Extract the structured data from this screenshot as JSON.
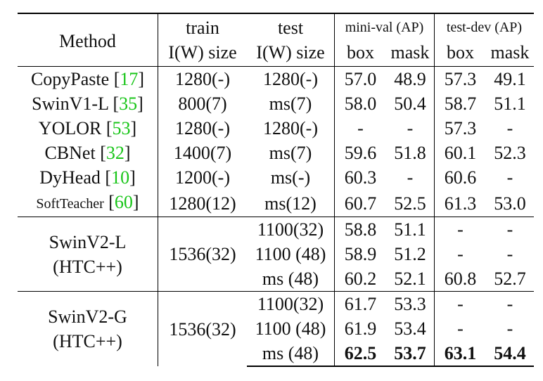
{
  "header": {
    "method": "Method",
    "train_top": "train",
    "test_top": "test",
    "train_bottom": "I(W) size",
    "test_bottom": "I(W) size",
    "group_minival": "mini-val (AP)",
    "group_testdev": "test-dev (AP)",
    "box": "box",
    "mask": "mask"
  },
  "rows": [
    {
      "name": "CopyPaste",
      "cite": "17",
      "train": "1280(-)",
      "test": "1280(-)",
      "mv_box": "57.0",
      "mv_mask": "48.9",
      "td_box": "57.3",
      "td_mask": "49.1"
    },
    {
      "name": "SwinV1-L",
      "cite": "35",
      "train": "800(7)",
      "test": "ms(7)",
      "mv_box": "58.0",
      "mv_mask": "50.4",
      "td_box": "58.7",
      "td_mask": "51.1"
    },
    {
      "name": "YOLOR",
      "cite": "53",
      "train": "1280(-)",
      "test": "1280(-)",
      "mv_box": "-",
      "mv_mask": "-",
      "td_box": "57.3",
      "td_mask": "-"
    },
    {
      "name": "CBNet",
      "cite": "32",
      "train": "1400(7)",
      "test": "ms(7)",
      "mv_box": "59.6",
      "mv_mask": "51.8",
      "td_box": "60.1",
      "td_mask": "52.3"
    },
    {
      "name": "DyHead",
      "cite": "10",
      "train": "1200(-)",
      "test": "ms(-)",
      "mv_box": "60.3",
      "mv_mask": "-",
      "td_box": "60.6",
      "td_mask": "-"
    },
    {
      "name": "SoftTeacher",
      "cite": "60",
      "train": "1280(12)",
      "test": "ms(12)",
      "mv_box": "60.7",
      "mv_mask": "52.5",
      "td_box": "61.3",
      "td_mask": "53.0"
    }
  ],
  "group1": {
    "name_line1": "SwinV2-L",
    "name_line2": "(HTC++)",
    "train": "1536(32)",
    "rows": [
      {
        "test": "1100(32)",
        "mv_box": "58.8",
        "mv_mask": "51.1",
        "td_box": "-",
        "td_mask": "-"
      },
      {
        "test": "1100 (48)",
        "mv_box": "58.9",
        "mv_mask": "51.2",
        "td_box": "-",
        "td_mask": "-"
      },
      {
        "test": "ms (48)",
        "mv_box": "60.2",
        "mv_mask": "52.1",
        "td_box": "60.8",
        "td_mask": "52.7"
      }
    ]
  },
  "group2": {
    "name_line1": "SwinV2-G",
    "name_line2": "(HTC++)",
    "train": "1536(32)",
    "rows": [
      {
        "test": "1100(32)",
        "mv_box": "61.7",
        "mv_mask": "53.3",
        "td_box": "-",
        "td_mask": "-"
      },
      {
        "test": "1100 (48)",
        "mv_box": "61.9",
        "mv_mask": "53.4",
        "td_box": "-",
        "td_mask": "-"
      },
      {
        "test": "ms (48)",
        "mv_box": "62.5",
        "mv_mask": "53.7",
        "td_box": "63.1",
        "td_mask": "54.4"
      }
    ]
  }
}
